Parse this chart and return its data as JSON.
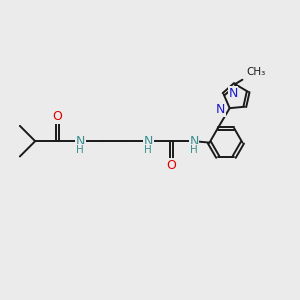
{
  "bg_color": "#ebebeb",
  "bond_color": "#1a1a1a",
  "O_color": "#dd0000",
  "N_color": "#1a1acc",
  "NH_color": "#3a9090",
  "lw": 1.4,
  "dbo": 0.055,
  "xlim": [
    0,
    10
  ],
  "ylim": [
    0,
    10
  ]
}
